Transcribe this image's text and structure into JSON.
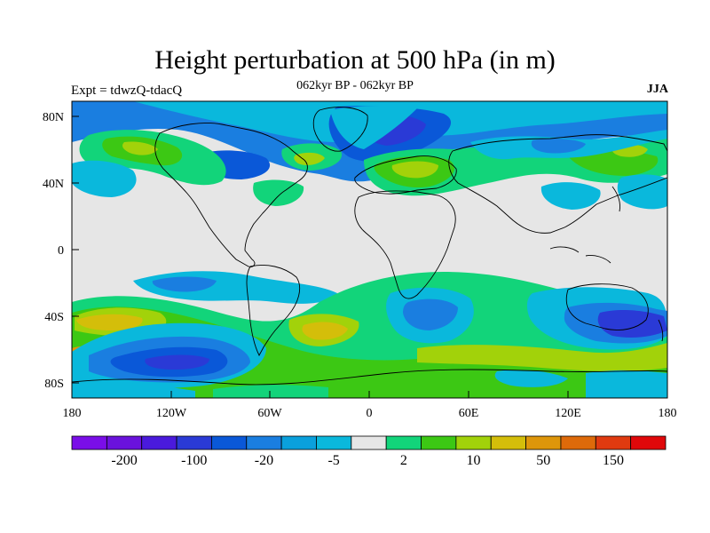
{
  "header": {
    "title": "Height perturbation at 500 hPa (in m)",
    "subtitle": "062kyr BP - 062kyr BP",
    "left_string": "Expt = tdwzQ-tdacQ",
    "right_string": "JJA"
  },
  "axes": {
    "lat_labels": [
      "80N",
      "40N",
      "0",
      "40S",
      "80S"
    ],
    "lon_labels": [
      "180",
      "120W",
      "60W",
      "0",
      "60E",
      "120E",
      "180"
    ]
  },
  "colorbar": {
    "colors": [
      "#7a0ee8",
      "#6a12dc",
      "#4a1adc",
      "#2a3ad6",
      "#0a58d8",
      "#1a7ee0",
      "#0aa0dc",
      "#0ab8dc",
      "#e6e6e6",
      "#12d47a",
      "#3cc814",
      "#a2d20a",
      "#d4be0a",
      "#de960a",
      "#de6a0a",
      "#e03a10",
      "#e0080a"
    ],
    "labels": [
      "-200",
      "-100",
      "-20",
      "-5",
      "2",
      "10",
      "50",
      "150"
    ]
  },
  "map_colors": {
    "neutral": "#e6e6e6",
    "light_blue": "#0ab8dc",
    "mid_blue": "#1a7ee0",
    "dark_blue": "#0a58d8",
    "deep_blue": "#2a3ad6",
    "green": "#12d47a",
    "lime": "#3cc814",
    "yellow_green": "#a2d20a",
    "mustard": "#d4be0a",
    "orange": "#de960a"
  }
}
